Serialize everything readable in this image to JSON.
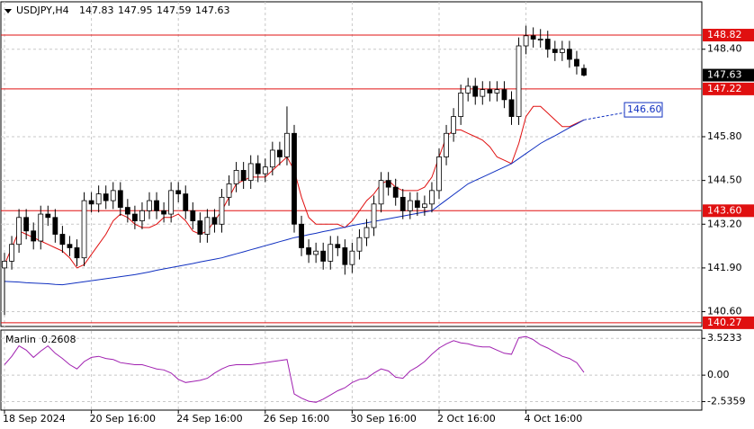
{
  "chart_data": {
    "type": "candlestick",
    "symbol": "USDJPY,H4",
    "categories": [
      "18 Sep 2024",
      null,
      null,
      null,
      null,
      null,
      null,
      null,
      null,
      null,
      null,
      null,
      "20 Sep 16:00",
      null,
      null,
      null,
      null,
      null,
      null,
      null,
      null,
      null,
      null,
      null,
      "24 Sep 16:00",
      null,
      null,
      null,
      null,
      null,
      null,
      null,
      null,
      null,
      null,
      null,
      "26 Sep 16:00",
      null,
      null,
      null,
      null,
      null,
      null,
      null,
      null,
      null,
      null,
      null,
      "30 Sep 16:00",
      null,
      null,
      null,
      null,
      null,
      null,
      null,
      null,
      null,
      null,
      null,
      "2 Oct 16:00",
      null,
      null,
      null,
      null,
      null,
      null,
      null,
      null,
      null,
      null,
      null,
      "4 Oct 16:00",
      null,
      null,
      null,
      null,
      null,
      null,
      null,
      null
    ],
    "open": [
      141.9,
      142.1,
      142.6,
      143.4,
      143.0,
      142.7,
      143.5,
      143.4,
      142.9,
      142.6,
      142.5,
      142.2,
      143.9,
      143.8,
      144.1,
      143.9,
      144.2,
      143.7,
      143.5,
      143.3,
      143.6,
      143.9,
      143.6,
      143.5,
      144.2,
      144.1,
      143.6,
      143.3,
      142.9,
      143.4,
      143.2,
      144.0,
      144.4,
      144.8,
      144.5,
      145.0,
      144.7,
      144.9,
      145.4,
      145.2,
      145.9,
      143.2,
      142.5,
      142.3,
      142.4,
      142.1,
      142.6,
      142.5,
      142.0,
      142.4,
      142.8,
      143.1,
      143.8,
      144.5,
      144.3,
      144.0,
      143.6,
      143.9,
      143.7,
      143.8,
      144.2,
      145.2,
      145.9,
      146.4,
      147.1,
      147.3,
      147.0,
      147.2,
      147.1,
      147.2,
      146.9,
      146.4,
      148.5,
      148.8,
      148.7,
      148.7,
      148.4,
      148.3,
      148.4,
      148.1,
      147.83
    ],
    "high": [
      142.35,
      142.85,
      143.65,
      143.65,
      143.25,
      143.75,
      143.75,
      143.65,
      143.15,
      142.85,
      142.75,
      144.15,
      144.15,
      144.35,
      144.35,
      144.45,
      144.45,
      143.95,
      143.75,
      143.85,
      144.15,
      144.15,
      143.85,
      144.45,
      144.45,
      144.35,
      143.85,
      143.55,
      143.65,
      143.65,
      144.25,
      144.65,
      145.05,
      145.05,
      145.25,
      145.25,
      145.15,
      145.65,
      145.65,
      146.7,
      146.15,
      143.45,
      142.75,
      142.65,
      142.65,
      142.85,
      142.85,
      142.75,
      142.65,
      143.05,
      143.35,
      144.05,
      144.75,
      144.75,
      144.55,
      144.25,
      144.15,
      144.15,
      144.05,
      144.45,
      145.45,
      146.15,
      146.65,
      147.35,
      147.55,
      147.55,
      147.45,
      147.45,
      147.45,
      147.45,
      147.15,
      148.75,
      149.1,
      149.05,
      149.0,
      148.95,
      148.65,
      148.65,
      148.65,
      148.35,
      147.95
    ],
    "low": [
      140.5,
      141.85,
      142.35,
      142.75,
      142.45,
      142.45,
      143.15,
      142.65,
      142.35,
      142.25,
      141.95,
      141.95,
      143.55,
      143.55,
      143.65,
      143.65,
      143.45,
      143.25,
      143.05,
      143.05,
      143.35,
      143.35,
      143.25,
      143.25,
      143.85,
      143.35,
      143.05,
      142.65,
      142.65,
      142.95,
      142.95,
      143.75,
      144.15,
      144.25,
      144.25,
      144.45,
      144.45,
      144.65,
      144.95,
      144.95,
      142.95,
      142.25,
      142.05,
      142.05,
      141.85,
      141.85,
      142.25,
      141.7,
      141.75,
      142.15,
      142.55,
      142.85,
      143.55,
      144.05,
      143.75,
      143.35,
      143.35,
      143.45,
      143.45,
      143.55,
      143.95,
      144.95,
      145.65,
      146.15,
      146.85,
      146.75,
      146.75,
      146.85,
      146.85,
      146.65,
      146.15,
      146.15,
      148.25,
      148.45,
      148.45,
      148.15,
      148.05,
      148.05,
      147.85,
      147.65,
      147.59
    ],
    "close": [
      142.1,
      142.6,
      143.4,
      143.0,
      142.7,
      143.5,
      143.4,
      142.9,
      142.6,
      142.5,
      142.2,
      143.9,
      143.8,
      144.1,
      143.9,
      144.2,
      143.7,
      143.5,
      143.3,
      143.6,
      143.9,
      143.6,
      143.5,
      144.2,
      144.1,
      143.6,
      143.3,
      142.9,
      143.4,
      143.2,
      144.0,
      144.4,
      144.8,
      144.5,
      145.0,
      144.7,
      144.9,
      145.4,
      145.2,
      145.9,
      143.2,
      142.5,
      142.3,
      142.4,
      142.1,
      142.6,
      142.5,
      142.0,
      142.4,
      142.8,
      143.1,
      143.8,
      144.5,
      144.3,
      144.0,
      143.6,
      143.9,
      143.7,
      143.8,
      144.2,
      145.2,
      145.9,
      146.4,
      147.1,
      147.3,
      147.0,
      147.2,
      147.1,
      147.2,
      146.9,
      146.4,
      148.5,
      148.8,
      148.7,
      148.7,
      148.4,
      148.3,
      148.4,
      148.1,
      147.9,
      147.63
    ],
    "bull_color": "#ffffff",
    "bear_color": "#000000",
    "ylim": [
      140.16,
      149.81
    ],
    "yticks": [
      {
        "value": 148.4,
        "label": "148.40"
      },
      {
        "value": 145.8,
        "label": "145.80"
      },
      {
        "value": 144.5,
        "label": "144.50"
      },
      {
        "value": 143.2,
        "label": "143.20"
      },
      {
        "value": 141.9,
        "label": "141.90"
      },
      {
        "value": 140.6,
        "label": "140.60"
      }
    ],
    "levels": [
      {
        "value": 148.82,
        "label": "148.82"
      },
      147.22,
      {
        "value": 143.6,
        "label": "143.60"
      },
      140.27
    ],
    "level_color": "#e01010",
    "ma": [
      {
        "color": "#e01010",
        "values": [
          142.0,
          142.5,
          143.0,
          142.9,
          142.8,
          142.7,
          142.6,
          142.5,
          142.4,
          142.2,
          141.9,
          142.0,
          142.3,
          142.6,
          142.9,
          143.3,
          143.5,
          143.4,
          143.2,
          143.1,
          143.1,
          143.2,
          143.4,
          143.4,
          143.5,
          143.3,
          143.0,
          142.9,
          143.0,
          143.3,
          143.6,
          144.0,
          144.4,
          144.5,
          144.6,
          144.6,
          144.6,
          144.8,
          145.0,
          145.2,
          144.8,
          144.0,
          143.4,
          143.2,
          143.2,
          143.2,
          143.2,
          143.1,
          143.3,
          143.6,
          143.9,
          144.1,
          144.4,
          144.5,
          144.3,
          144.2,
          144.2,
          144.2,
          144.3,
          144.6,
          145.2,
          145.8,
          146.0,
          146.0,
          145.9,
          145.8,
          145.7,
          145.5,
          145.2,
          145.1,
          145.0,
          145.6,
          146.4,
          146.7,
          146.7,
          146.5,
          146.3,
          146.1,
          146.1,
          146.2,
          146.3
        ]
      },
      {
        "color": "#1030c0",
        "values": [
          141.5,
          141.49,
          141.48,
          141.46,
          141.45,
          141.44,
          141.43,
          141.41,
          141.4,
          141.43,
          141.46,
          141.49,
          141.52,
          141.55,
          141.58,
          141.61,
          141.64,
          141.67,
          141.7,
          141.74,
          141.78,
          141.83,
          141.87,
          141.91,
          141.95,
          141.99,
          142.03,
          142.08,
          142.12,
          142.16,
          142.2,
          142.26,
          142.32,
          142.38,
          142.44,
          142.5,
          142.56,
          142.62,
          142.68,
          142.74,
          142.8,
          142.84,
          142.89,
          142.93,
          142.98,
          143.02,
          143.07,
          143.11,
          143.16,
          143.2,
          143.24,
          143.28,
          143.32,
          143.36,
          143.4,
          143.44,
          143.48,
          143.52,
          143.56,
          143.6,
          143.76,
          143.92,
          144.08,
          144.24,
          144.4,
          144.5,
          144.6,
          144.7,
          144.8,
          144.9,
          145.0,
          145.15,
          145.3,
          145.45,
          145.6,
          145.72,
          145.83,
          145.95,
          146.07,
          146.18,
          146.3
        ]
      }
    ],
    "projection": {
      "value": 146.6,
      "label": "146.60"
    },
    "indicator": {
      "name": "Marlin",
      "color": "#a020b0",
      "ylim": [
        -3.35,
        4.32
      ],
      "yticks": [
        3.5233,
        {
          "value": 0,
          "label": "0.00"
        },
        -2.5359
      ],
      "values": [
        1.0,
        1.8,
        2.8,
        2.4,
        1.7,
        2.3,
        2.8,
        2.1,
        1.6,
        1.0,
        0.6,
        1.3,
        1.7,
        1.8,
        1.6,
        1.5,
        1.2,
        1.1,
        1.0,
        1.0,
        0.8,
        0.6,
        0.5,
        0.2,
        -0.4,
        -0.7,
        -0.6,
        -0.5,
        -0.3,
        0.2,
        0.6,
        0.9,
        1.0,
        1.0,
        1.0,
        1.1,
        1.2,
        1.3,
        1.4,
        1.5,
        -1.8,
        -2.2,
        -2.5,
        -2.6,
        -2.3,
        -1.9,
        -1.5,
        -1.2,
        -0.7,
        -0.4,
        -0.3,
        0.2,
        0.6,
        0.4,
        -0.2,
        -0.3,
        0.4,
        0.8,
        1.3,
        2.0,
        2.6,
        3.0,
        3.3,
        3.1,
        3.0,
        2.8,
        2.7,
        2.7,
        2.4,
        2.1,
        2.0,
        3.6,
        3.7,
        3.4,
        2.9,
        2.6,
        2.2,
        1.8,
        1.6,
        1.2,
        0.2608
      ]
    }
  }
}
